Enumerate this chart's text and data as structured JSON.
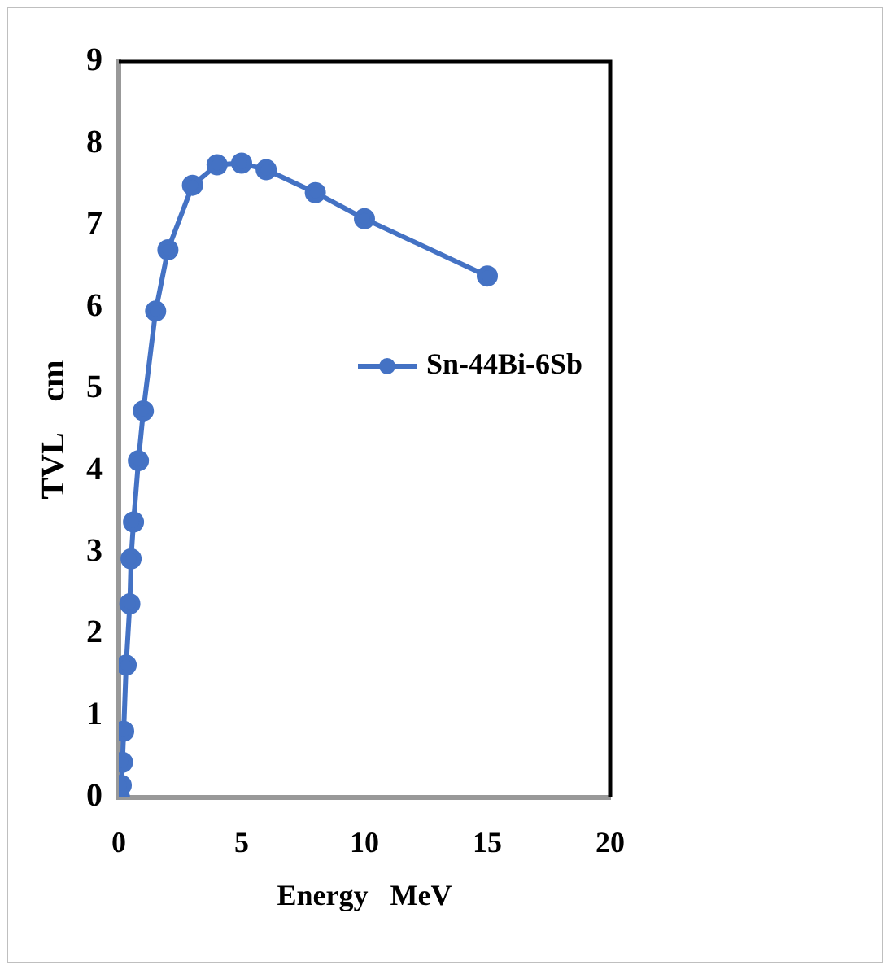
{
  "chart_data": {
    "type": "line",
    "xlabel": "Energy   MeV",
    "ylabel": "TVL    cm",
    "series": [
      {
        "name": "Sn-44Bi-6Sb",
        "color": "#4472c4",
        "x": [
          0.03,
          0.1,
          0.15,
          0.2,
          0.3,
          0.45,
          0.5,
          0.6,
          0.8,
          1,
          1.5,
          2,
          3,
          4,
          5,
          6,
          8,
          10,
          15
        ],
        "values": [
          0,
          0.15,
          0.43,
          0.81,
          1.62,
          2.37,
          2.92,
          3.37,
          4.12,
          4.73,
          5.95,
          6.7,
          7.49,
          7.74,
          7.76,
          7.68,
          7.4,
          7.08,
          6.38
        ]
      }
    ],
    "xlim": [
      0,
      20
    ],
    "xticks": [
      0,
      5,
      10,
      15,
      20
    ],
    "ylim": [
      0,
      9
    ],
    "yticks": [
      0,
      1,
      2,
      3,
      4,
      5,
      6,
      7,
      8,
      9
    ],
    "grid": false,
    "legend": "right",
    "marker": "circle",
    "line_style": "solid"
  }
}
